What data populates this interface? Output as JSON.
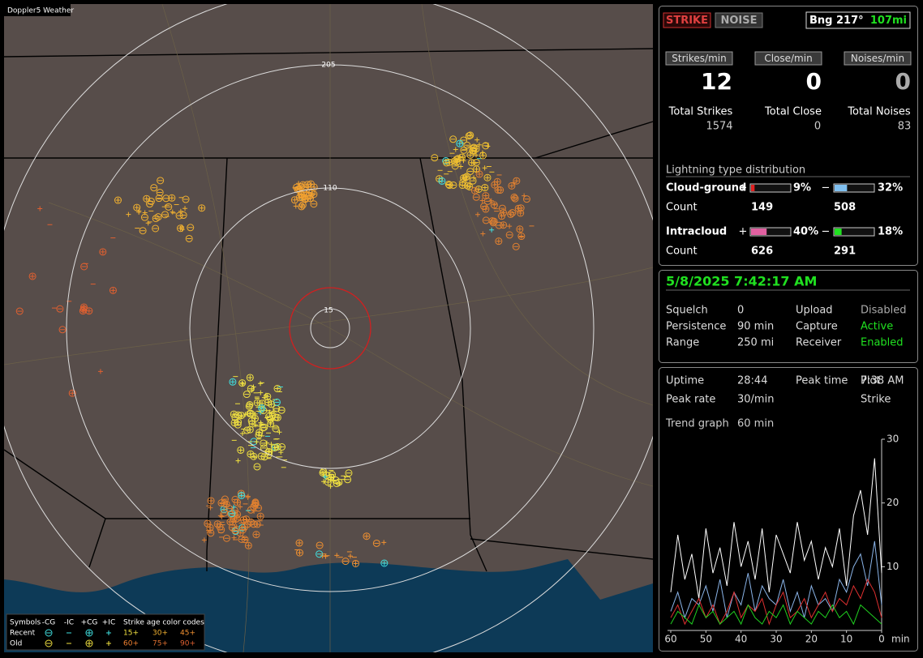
{
  "window_title": "Doppler5 Weather",
  "map": {
    "range_labels": [
      "205",
      "110",
      "15"
    ],
    "legend": {
      "symbols": "Symbols",
      "columns": [
        "-CG",
        "-IC",
        "+CG",
        "+IC"
      ],
      "age_title": "Strike age color codes",
      "rows": [
        "Recent",
        "Old"
      ],
      "recent_ages": [
        "15+",
        "30+",
        "45+"
      ],
      "old_ages": [
        "60+",
        "75+",
        "90+"
      ]
    }
  },
  "status": {
    "strike_button": "STRIKE",
    "noise_button": "NOISE",
    "bearing": "Bng 217°",
    "distance": "107mi",
    "rate_headers": [
      "Strikes/min",
      "Close/min",
      "Noises/min"
    ],
    "rates": [
      12,
      0,
      0
    ],
    "total_labels": [
      "Total Strikes",
      "Total Close",
      "Total Noises"
    ],
    "totals": [
      1574,
      0,
      83
    ],
    "distribution_title": "Lightning type distribution",
    "cloud_ground": {
      "label": "Cloud-ground",
      "plus_sign": "+",
      "minus_sign": "−",
      "plus": {
        "value": 9,
        "label": "9%"
      },
      "minus": {
        "value": 32,
        "label": "32%"
      },
      "count_label": "Count",
      "plus_count": 149,
      "minus_count": 508
    },
    "intracloud": {
      "label": "Intracloud",
      "plus_sign": "+",
      "minus_sign": "−",
      "plus": {
        "value": 40,
        "label": "40%"
      },
      "minus": {
        "value": 18,
        "label": "18%"
      },
      "count_label": "Count",
      "plus_count": 626,
      "minus_count": 291
    }
  },
  "settings": {
    "datetime": "5/8/2025 7:42:17 AM",
    "rows": [
      [
        "Squelch",
        "0",
        "Upload",
        "Disabled"
      ],
      [
        "Persistence",
        "90 min",
        "Capture",
        "Active"
      ],
      [
        "Range",
        "250 mi",
        "Receiver",
        "Enabled"
      ]
    ]
  },
  "stats": {
    "rows": [
      [
        "Uptime",
        "28:44",
        "Peak time",
        "7:38 AM",
        "Plot"
      ],
      [
        "Peak rate",
        "30/min",
        "",
        "",
        "Strike"
      ]
    ],
    "trend_label": "Trend graph",
    "trend_value": "60 min"
  },
  "chart_data": {
    "type": "line",
    "x_label": "min",
    "x": [
      60,
      58,
      56,
      54,
      52,
      50,
      48,
      46,
      44,
      42,
      40,
      38,
      36,
      34,
      32,
      30,
      28,
      26,
      24,
      22,
      20,
      18,
      16,
      14,
      12,
      10,
      8,
      6,
      4,
      2,
      0
    ],
    "xlim": [
      60,
      0
    ],
    "xticks": [
      60,
      50,
      40,
      30,
      20,
      10,
      0
    ],
    "ylim": [
      0,
      30
    ],
    "yticks": [
      10,
      20,
      30
    ],
    "series": [
      {
        "color": "#ffffff",
        "values": [
          6,
          15,
          8,
          12,
          5,
          16,
          9,
          13,
          7,
          17,
          10,
          14,
          8,
          16,
          6,
          15,
          12,
          9,
          17,
          11,
          14,
          8,
          13,
          10,
          16,
          7,
          18,
          22,
          15,
          27,
          9
        ]
      },
      {
        "color": "#8ab4e8",
        "values": [
          3,
          6,
          2,
          5,
          4,
          7,
          3,
          8,
          2,
          6,
          4,
          9,
          3,
          7,
          5,
          4,
          8,
          3,
          6,
          2,
          7,
          4,
          5,
          3,
          8,
          6,
          10,
          12,
          7,
          14,
          4
        ]
      },
      {
        "color": "#e03030",
        "values": [
          2,
          4,
          1,
          3,
          5,
          2,
          4,
          1,
          3,
          6,
          2,
          4,
          3,
          5,
          1,
          4,
          6,
          2,
          3,
          5,
          2,
          4,
          6,
          3,
          5,
          4,
          7,
          5,
          8,
          6,
          2
        ]
      },
      {
        "color": "#20d020",
        "values": [
          1,
          3,
          2,
          1,
          4,
          2,
          3,
          1,
          2,
          3,
          1,
          4,
          2,
          1,
          3,
          2,
          4,
          1,
          3,
          2,
          1,
          3,
          2,
          4,
          2,
          3,
          1,
          4,
          3,
          2,
          1
        ]
      }
    ]
  }
}
